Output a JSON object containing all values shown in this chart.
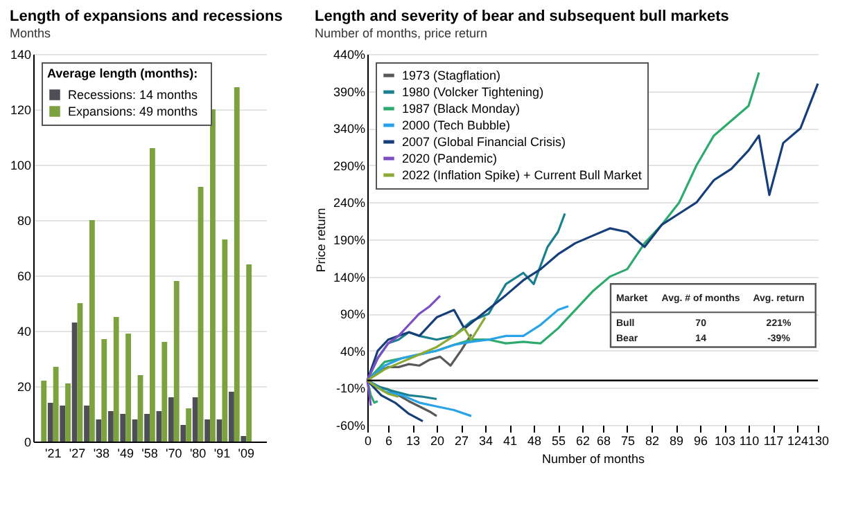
{
  "chart_data": [
    {
      "type": "bar",
      "title": "Length of expansions and recessions",
      "subtitle": "Months",
      "legend_title": "Average length (months):",
      "legend": "top left",
      "grid": "y",
      "categories": [
        null,
        "'21",
        null,
        "'27",
        null,
        "'38",
        null,
        "'49",
        null,
        "'58",
        null,
        "'70",
        null,
        "'80",
        null,
        "'91",
        null,
        "'09",
        null
      ],
      "ylim": [
        0,
        140
      ],
      "yticks": [
        0,
        20,
        40,
        60,
        80,
        100,
        120,
        140
      ],
      "series": [
        {
          "name": "Recessions:   14 months",
          "color": "#4d4f55",
          "values": [
            null,
            14,
            13,
            43,
            13,
            8,
            11,
            10,
            8,
            10,
            11,
            16,
            6,
            16,
            8,
            8,
            18,
            2,
            null
          ]
        },
        {
          "name": "Expansions:   49 months",
          "color": "#7ba23f",
          "values": [
            22,
            27,
            21,
            50,
            80,
            37,
            45,
            39,
            24,
            106,
            36,
            58,
            12,
            92,
            120,
            73,
            128,
            64,
            null
          ]
        }
      ]
    },
    {
      "type": "line",
      "title": "Length and severity of bear and subsequent bull markets",
      "subtitle": "Number of months, price return",
      "xlabel": "Number of months",
      "ylabel": "Price return",
      "legend": "top left",
      "grid": "y",
      "xlim": [
        0,
        130
      ],
      "xticks": [
        0,
        6,
        13,
        20,
        27,
        34,
        41,
        48,
        55,
        62,
        68,
        75,
        82,
        89,
        96,
        103,
        110,
        117,
        124,
        130
      ],
      "ylim": [
        -60,
        440
      ],
      "yticks": [
        {
          "value": -60,
          "label": "-60%"
        },
        {
          "value": -10,
          "label": "-10%"
        },
        {
          "value": 40,
          "label": "40%"
        },
        {
          "value": 90,
          "label": "90%"
        },
        {
          "value": 140,
          "label": "140%"
        },
        {
          "value": 190,
          "label": "190%"
        },
        {
          "value": 240,
          "label": "240%"
        },
        {
          "value": 290,
          "label": "290%"
        },
        {
          "value": 340,
          "label": "340%"
        },
        {
          "value": 390,
          "label": "390%"
        },
        {
          "value": 440,
          "label": "440%"
        }
      ],
      "ref_lines": [
        {
          "axis": "y",
          "value": 0,
          "color": "#000000"
        }
      ],
      "annotations": [
        "Market",
        "Avg. # of months",
        "Avg. return",
        "Bull",
        "70",
        "221%",
        "Bear",
        "14",
        "-39%"
      ],
      "series": [
        {
          "name": "1973 (Stagflation)",
          "color": "#595959",
          "x": [
            0,
            3,
            6,
            9,
            12,
            15,
            18,
            20,
            null,
            0,
            3,
            6,
            9,
            12,
            15,
            18,
            21,
            24,
            27,
            30
          ],
          "values": [
            0,
            -8,
            -12,
            -20,
            -28,
            -35,
            -42,
            -48,
            null,
            0,
            12,
            18,
            18,
            22,
            20,
            28,
            32,
            20,
            40,
            62
          ]
        },
        {
          "name": "1980 (Volcker Tightening)",
          "color": "#1a7f8e",
          "x": [
            0,
            4,
            8,
            12,
            16,
            20,
            null,
            0,
            3,
            6,
            9,
            12,
            15,
            20,
            25,
            30,
            35,
            40,
            45,
            48,
            52,
            55,
            57
          ],
          "values": [
            0,
            -10,
            -15,
            -20,
            -22,
            -25,
            null,
            0,
            30,
            50,
            55,
            65,
            60,
            55,
            60,
            80,
            90,
            130,
            145,
            130,
            180,
            200,
            225
          ]
        },
        {
          "name": "1987 (Black Monday)",
          "color": "#2eaa6e",
          "x": [
            0,
            1,
            2,
            3,
            null,
            0,
            5,
            10,
            15,
            20,
            25,
            30,
            35,
            40,
            45,
            50,
            55,
            60,
            65,
            70,
            75,
            80,
            85,
            90,
            95,
            100,
            105,
            110,
            113
          ],
          "values": [
            0,
            -20,
            -30,
            -28,
            null,
            0,
            25,
            30,
            35,
            40,
            48,
            55,
            55,
            50,
            52,
            50,
            70,
            95,
            120,
            140,
            150,
            185,
            210,
            240,
            290,
            330,
            350,
            370,
            415
          ]
        },
        {
          "name": "2000 (Tech Bubble)",
          "color": "#29a3e8",
          "x": [
            0,
            5,
            10,
            15,
            20,
            25,
            30,
            null,
            0,
            5,
            10,
            15,
            20,
            25,
            30,
            35,
            40,
            45,
            50,
            55,
            58
          ],
          "values": [
            0,
            -15,
            -20,
            -30,
            -35,
            -40,
            -48,
            null,
            0,
            20,
            30,
            35,
            40,
            48,
            52,
            55,
            60,
            60,
            75,
            95,
            100
          ]
        },
        {
          "name": "2007 (Global Financial Crisis)",
          "color": "#163f7a",
          "x": [
            0,
            4,
            8,
            12,
            16,
            null,
            0,
            3,
            6,
            9,
            12,
            15,
            20,
            25,
            28,
            32,
            36,
            40,
            45,
            50,
            55,
            60,
            65,
            70,
            75,
            80,
            85,
            90,
            95,
            100,
            105,
            110,
            113,
            116,
            120,
            125,
            130
          ],
          "values": [
            0,
            -20,
            -30,
            -45,
            -55,
            null,
            0,
            40,
            55,
            60,
            65,
            60,
            85,
            95,
            70,
            85,
            100,
            115,
            135,
            150,
            170,
            185,
            195,
            205,
            200,
            180,
            210,
            225,
            240,
            270,
            285,
            310,
            330,
            250,
            320,
            340,
            400
          ]
        },
        {
          "name": "2020 (Pandemic)",
          "color": "#7b4fc4",
          "x": [
            0,
            1,
            null,
            0,
            3,
            6,
            9,
            12,
            15,
            18,
            21
          ],
          "values": [
            0,
            -34,
            null,
            0,
            30,
            50,
            60,
            75,
            90,
            100,
            114
          ]
        },
        {
          "name": "2022 (Inflation Spike) + Current Bull Market",
          "color": "#8aaa35",
          "x": [
            0,
            3,
            6,
            9,
            null,
            0,
            5,
            10,
            15,
            20,
            25,
            28,
            30,
            34
          ],
          "values": [
            0,
            -10,
            -18,
            -22,
            null,
            0,
            15,
            25,
            35,
            45,
            60,
            70,
            55,
            85
          ]
        }
      ]
    }
  ]
}
